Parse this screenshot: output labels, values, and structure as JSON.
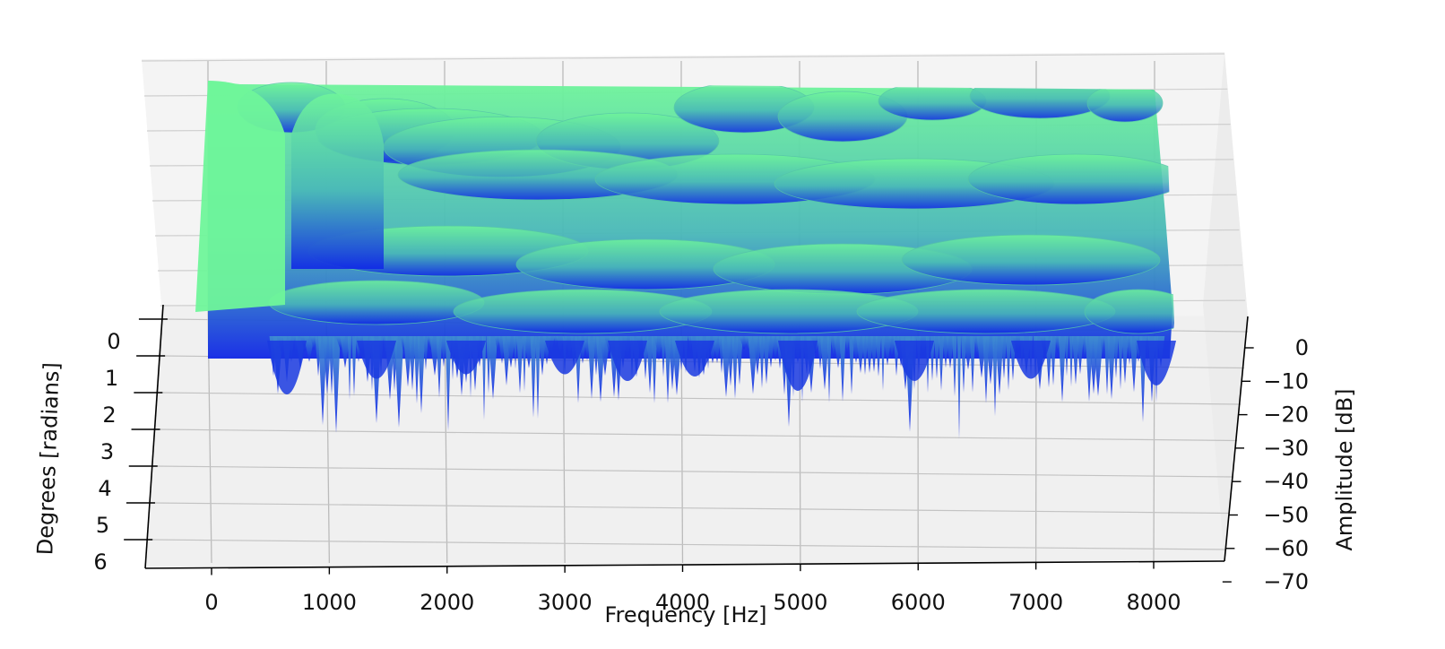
{
  "chart_data": {
    "type": "surface3d",
    "x_axis": {
      "label": "Frequency [Hz]",
      "ticks": [
        "0",
        "1000",
        "2000",
        "3000",
        "4000",
        "5000",
        "6000",
        "7000",
        "8000"
      ],
      "range": [
        -500,
        8500
      ]
    },
    "y_axis": {
      "label": "Degrees [radians]",
      "ticks": [
        "0",
        "1",
        "2",
        "3",
        "4",
        "5",
        "6"
      ],
      "range": [
        0,
        6.28
      ]
    },
    "z_axis": {
      "label": "Amplitude [dB]",
      "ticks": [
        "0",
        "−10",
        "−20",
        "−30",
        "−40",
        "−50",
        "−60",
        "−70"
      ],
      "range": [
        -70,
        0
      ]
    },
    "colormap": {
      "low": "#1027e6",
      "high": "#6ff59a"
    },
    "grid": true,
    "pane_color": "#f2f2f2"
  }
}
